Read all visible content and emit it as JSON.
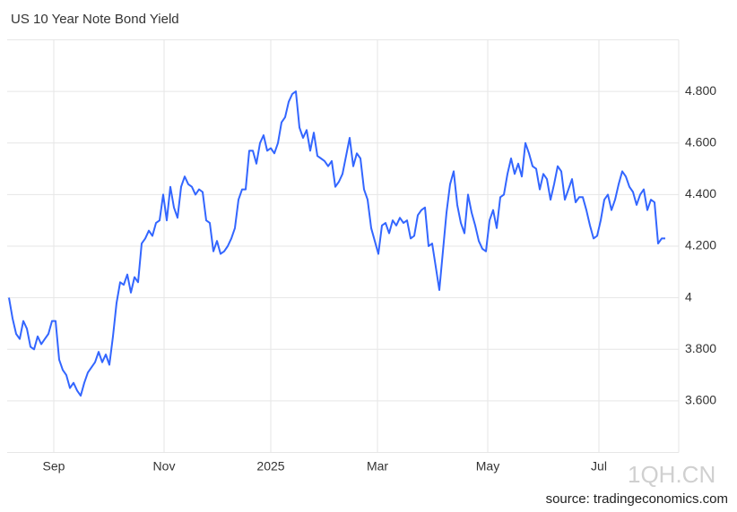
{
  "chart_data": {
    "type": "line",
    "title": "US 10 Year Note Bond Yield",
    "source": "source: tradingeconomics.com",
    "watermark": "1QH.CN",
    "color": "#3366ff",
    "grid": true,
    "xlim": [
      0,
      183
    ],
    "xticks": [
      {
        "value": 12.5,
        "label": "Sep"
      },
      {
        "value": 43.25,
        "label": "Nov"
      },
      {
        "value": 73,
        "label": "2025"
      },
      {
        "value": 102.75,
        "label": "Mar"
      },
      {
        "value": 133.5,
        "label": "May"
      },
      {
        "value": 164.5,
        "label": "Jul"
      }
    ],
    "ylim": [
      3.4,
      5.0
    ],
    "yticks": [
      {
        "value": 3.6,
        "label": "3.600"
      },
      {
        "value": 3.8,
        "label": "3.800"
      },
      4,
      {
        "value": 4.2,
        "label": "4.200"
      },
      {
        "value": 4.4,
        "label": "4.400"
      },
      {
        "value": 4.6,
        "label": "4.600"
      },
      {
        "value": 4.8,
        "label": "4.800"
      }
    ],
    "values": [
      4.0,
      3.92,
      3.86,
      3.84,
      3.91,
      3.88,
      3.81,
      3.8,
      3.85,
      3.82,
      3.84,
      3.86,
      3.91,
      3.91,
      3.76,
      3.72,
      3.7,
      3.65,
      3.67,
      3.64,
      3.62,
      3.67,
      3.71,
      3.73,
      3.75,
      3.79,
      3.75,
      3.78,
      3.74,
      3.85,
      3.98,
      4.06,
      4.05,
      4.09,
      4.02,
      4.08,
      4.06,
      4.21,
      4.23,
      4.26,
      4.24,
      4.29,
      4.3,
      4.4,
      4.3,
      4.43,
      4.35,
      4.31,
      4.43,
      4.47,
      4.44,
      4.43,
      4.4,
      4.42,
      4.41,
      4.3,
      4.29,
      4.18,
      4.22,
      4.17,
      4.18,
      4.2,
      4.23,
      4.27,
      4.38,
      4.42,
      4.42,
      4.57,
      4.57,
      4.52,
      4.6,
      4.63,
      4.57,
      4.58,
      4.56,
      4.6,
      4.68,
      4.7,
      4.76,
      4.79,
      4.8,
      4.66,
      4.62,
      4.65,
      4.57,
      4.64,
      4.55,
      4.54,
      4.53,
      4.51,
      4.53,
      4.43,
      4.45,
      4.48,
      4.55,
      4.62,
      4.51,
      4.56,
      4.54,
      4.42,
      4.38,
      4.27,
      4.22,
      4.17,
      4.28,
      4.29,
      4.25,
      4.3,
      4.28,
      4.31,
      4.29,
      4.3,
      4.23,
      4.24,
      4.32,
      4.34,
      4.35,
      4.2,
      4.21,
      4.12,
      4.03,
      4.18,
      4.33,
      4.44,
      4.49,
      4.36,
      4.29,
      4.25,
      4.4,
      4.33,
      4.28,
      4.22,
      4.19,
      4.18,
      4.3,
      4.34,
      4.27,
      4.39,
      4.4,
      4.48,
      4.54,
      4.48,
      4.52,
      4.47,
      4.6,
      4.56,
      4.51,
      4.5,
      4.42,
      4.48,
      4.46,
      4.38,
      4.44,
      4.51,
      4.49,
      4.38,
      4.42,
      4.46,
      4.37,
      4.39,
      4.39,
      4.34,
      4.28,
      4.23,
      4.24,
      4.3,
      4.38,
      4.4,
      4.34,
      4.38,
      4.44,
      4.49,
      4.47,
      4.43,
      4.41,
      4.36,
      4.4,
      4.42,
      4.34,
      4.38,
      4.37,
      4.21,
      4.23,
      4.23
    ]
  }
}
